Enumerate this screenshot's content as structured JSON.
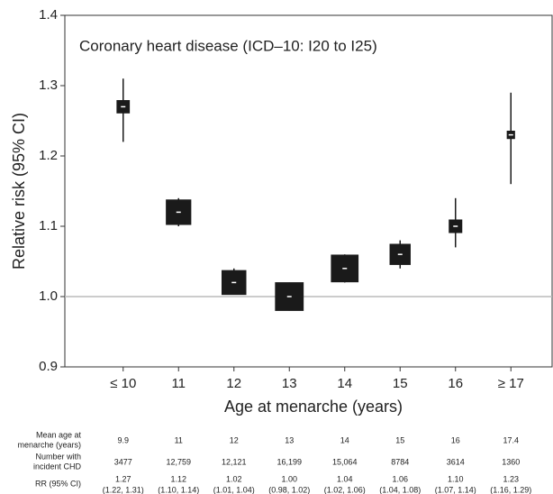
{
  "chart_data": {
    "type": "forest",
    "title": "Coronary heart disease (ICD–10: I20 to I25)",
    "xlabel": "Age at menarche (years)",
    "ylabel": "Relative risk (95% CI)",
    "categories": [
      "≤ 10",
      "11",
      "12",
      "13",
      "14",
      "15",
      "16",
      "≥ 17"
    ],
    "values": [
      1.27,
      1.12,
      1.02,
      1.0,
      1.04,
      1.06,
      1.1,
      1.23
    ],
    "lower": [
      1.22,
      1.1,
      1.01,
      0.98,
      1.02,
      1.04,
      1.07,
      1.16
    ],
    "upper": [
      1.31,
      1.14,
      1.04,
      1.02,
      1.06,
      1.08,
      1.14,
      1.29
    ],
    "color": "#1a1a1a",
    "ylim": [
      0.9,
      1.4
    ],
    "yticks": [
      {
        "value": 0.9,
        "label": "0.9"
      },
      {
        "value": 1.0,
        "label": "1.0"
      },
      {
        "value": 1.1,
        "label": "1.1"
      },
      {
        "value": 1.2,
        "label": "1.2"
      },
      {
        "value": 1.3,
        "label": "1.3"
      },
      {
        "value": 1.4,
        "label": "1.4"
      }
    ],
    "reference_line": 1.0
  },
  "table": {
    "rows": [
      {
        "label": [
          "Mean age at",
          "menarche (years)"
        ],
        "cells": [
          9.9,
          11,
          12,
          13,
          14,
          15,
          16,
          17.4
        ]
      },
      {
        "label": [
          "Number with",
          "incident CHD"
        ],
        "cells": [
          3477,
          {
            "value": 12759,
            "label": "12,759"
          },
          {
            "value": 12121,
            "label": "12,121"
          },
          {
            "value": 16199,
            "label": "16,199"
          },
          {
            "value": 15064,
            "label": "15,064"
          },
          8784,
          3614,
          1360
        ]
      },
      {
        "label": [
          "RR (95% CI)"
        ],
        "cells": [
          [
            "1.27",
            "(1.22, 1.31)"
          ],
          [
            "1.12",
            "(1.10, 1.14)"
          ],
          [
            "1.02",
            "(1.01, 1.04)"
          ],
          [
            "1.00",
            "(0.98, 1.02)"
          ],
          [
            "1.04",
            "(1.02, 1.06)"
          ],
          [
            "1.06",
            "(1.04, 1.08)"
          ],
          [
            "1.10",
            "(1.07, 1.14)"
          ],
          [
            "1.23",
            "(1.16, 1.29)"
          ]
        ]
      }
    ]
  }
}
